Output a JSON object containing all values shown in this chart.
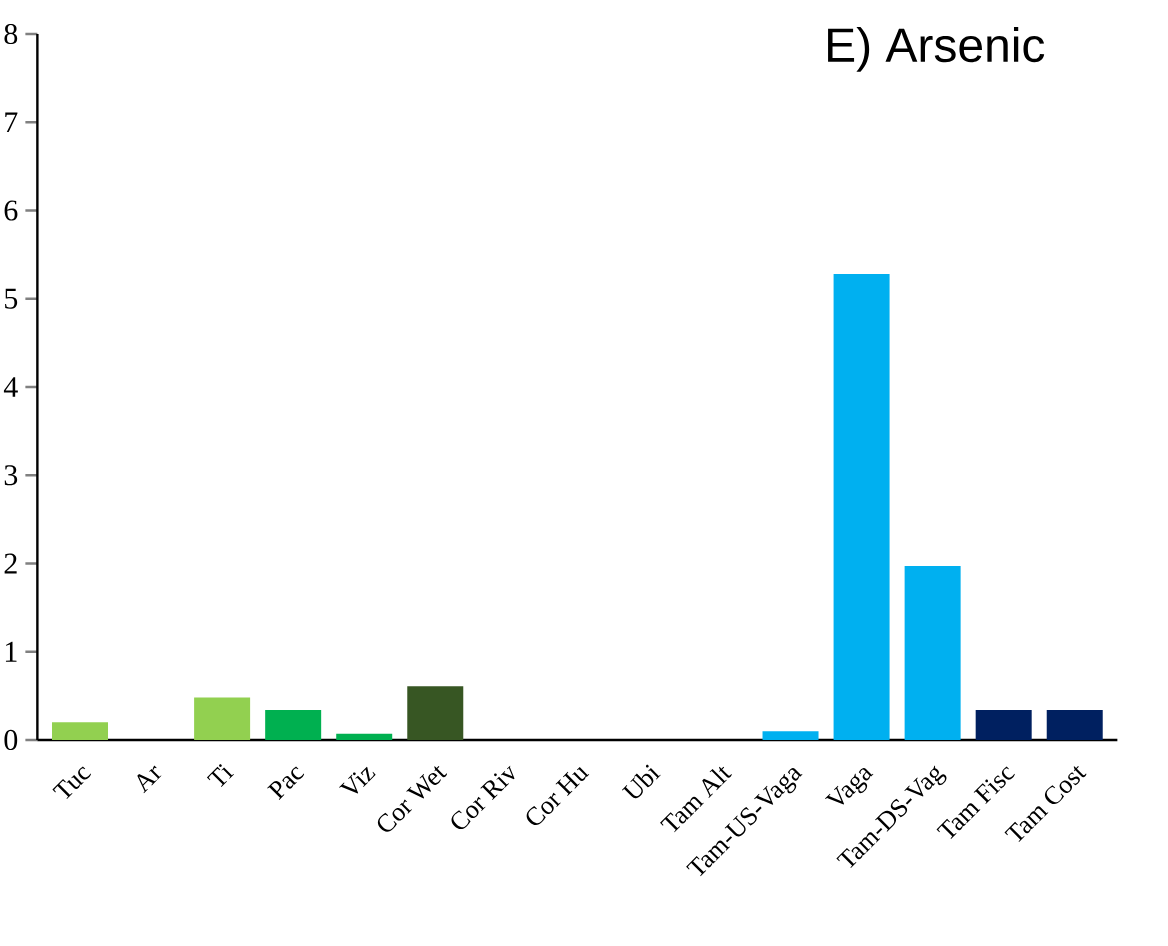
{
  "chart_data": {
    "type": "bar",
    "title": "E) Arsenic",
    "categories": [
      "Tuc",
      "Ar",
      "Ti",
      "Pac",
      "Viz",
      "Cor Wet",
      "Cor Riv",
      "Cor Hu",
      "Ubi",
      "Tam Alt",
      "Tam-US-Vaga",
      "Vaga",
      "Tam-DS-Vag",
      "Tam Fisc",
      "Tam Cost"
    ],
    "values": [
      0.2,
      0,
      0.48,
      0.34,
      0.07,
      0.61,
      0,
      0,
      0,
      0,
      0.1,
      5.28,
      1.97,
      0.34,
      0.34
    ],
    "colors": [
      "#92d050",
      "#92d050",
      "#92d050",
      "#00b050",
      "#00b050",
      "#375623",
      "#375623",
      "#375623",
      "#00b0f0",
      "#00b0f0",
      "#00b0f0",
      "#00b0f0",
      "#00b0f0",
      "#002060",
      "#002060"
    ],
    "ylim": [
      0,
      8
    ],
    "yticks": [
      0,
      1,
      2,
      3,
      4,
      5,
      6,
      7,
      8
    ],
    "grid": false
  }
}
